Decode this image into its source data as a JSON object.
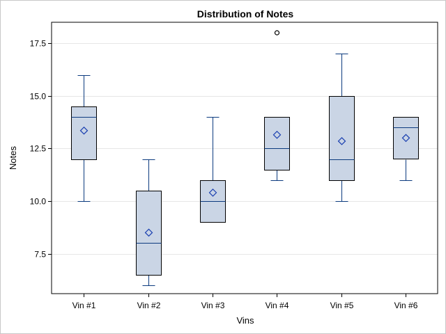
{
  "chart_data": {
    "type": "box",
    "title": "Distribution of Notes",
    "xlabel": "Vins",
    "ylabel": "Notes",
    "ylim": [
      5.6,
      18.5
    ],
    "yticks": [
      7.5,
      10.0,
      12.5,
      15.0,
      17.5
    ],
    "ytick_labels": [
      "7.5",
      "10.0",
      "12.5",
      "15.0",
      "17.5"
    ],
    "grid": true,
    "categories": [
      "Vin #1",
      "Vin #2",
      "Vin #3",
      "Vin #4",
      "Vin #5",
      "Vin #6"
    ],
    "boxes": [
      {
        "category": "Vin #1",
        "min": 10,
        "q1": 12,
        "median": 14,
        "q3": 14.5,
        "max": 16,
        "mean": 13.35,
        "outliers": []
      },
      {
        "category": "Vin #2",
        "min": 6,
        "q1": 6.5,
        "median": 8,
        "q3": 10.5,
        "max": 12,
        "mean": 8.5,
        "outliers": []
      },
      {
        "category": "Vin #3",
        "min": 9,
        "q1": 9,
        "median": 10,
        "q3": 11,
        "max": 14,
        "mean": 10.4,
        "outliers": []
      },
      {
        "category": "Vin #4",
        "min": 11,
        "q1": 11.5,
        "median": 12.5,
        "q3": 14,
        "max": 14,
        "mean": 13.15,
        "outliers": [
          18
        ]
      },
      {
        "category": "Vin #5",
        "min": 10,
        "q1": 11,
        "median": 12,
        "q3": 15,
        "max": 17,
        "mean": 12.85,
        "outliers": []
      },
      {
        "category": "Vin #6",
        "min": 11,
        "q1": 12,
        "median": 13.5,
        "q3": 14,
        "max": 14,
        "mean": 13,
        "outliers": []
      }
    ]
  },
  "colors": {
    "box_fill": "#cad5e5",
    "box_stroke": "#000000",
    "whisker": "#0b3a7e",
    "median": "#0b3a7e",
    "mean_marker": "#1a3fb0",
    "outlier": "#000000",
    "grid": "#e6e6e6",
    "frame": "#000000",
    "outer_border": "#c8c8c8"
  }
}
